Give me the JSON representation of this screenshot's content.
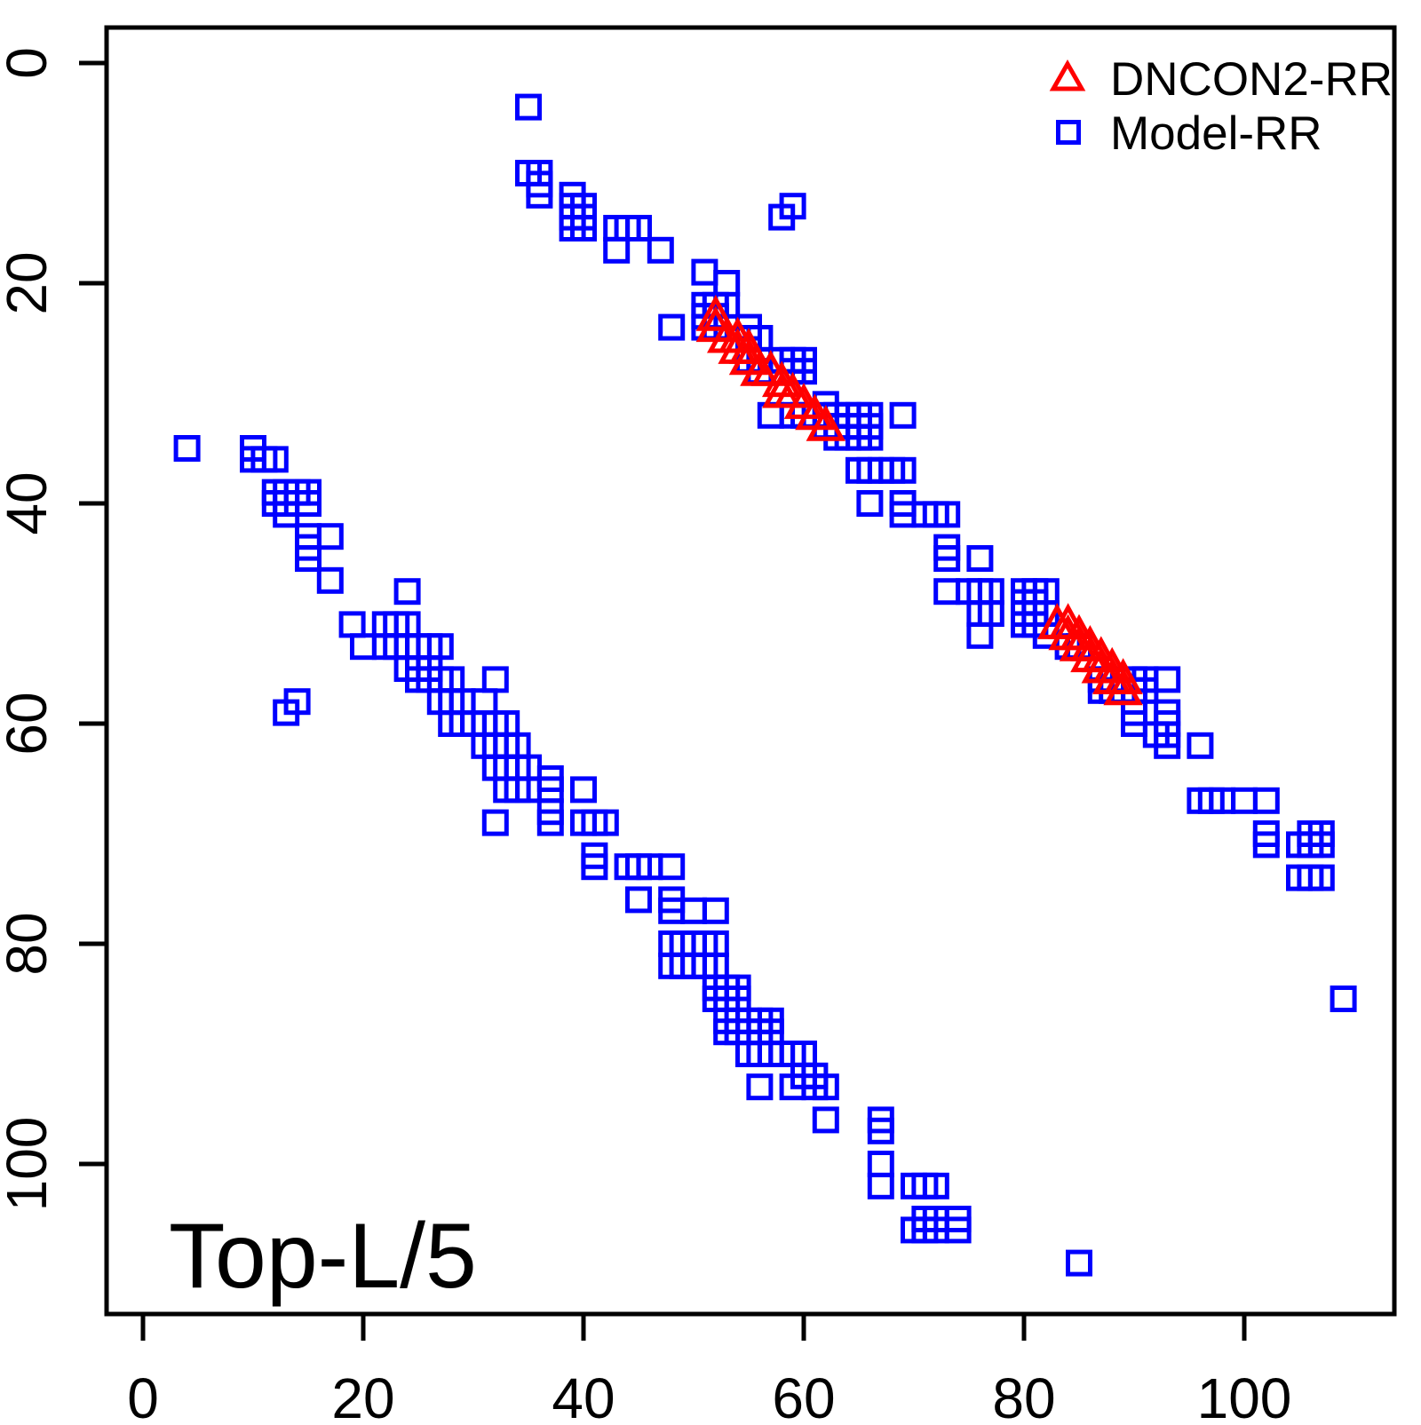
{
  "chart_data": {
    "type": "scatter",
    "title": "",
    "annotation": "Top-L/5",
    "xlabel": "",
    "ylabel": "",
    "xlim": [
      -3.3,
      113.5
    ],
    "ylim": [
      113.6,
      -3.2
    ],
    "y_axis_reversed": true,
    "grid": false,
    "x_ticks": [
      0,
      20,
      40,
      60,
      80,
      100
    ],
    "y_ticks": [
      0,
      20,
      40,
      60,
      80,
      100
    ],
    "legend_position": "top-right-inside",
    "series": [
      {
        "name": "DNCON2-RR",
        "marker": "triangle",
        "color": "#FF0000",
        "points": [
          [
            52,
            23
          ],
          [
            52,
            24
          ],
          [
            53,
            25
          ],
          [
            54,
            25
          ],
          [
            54,
            26
          ],
          [
            55,
            26
          ],
          [
            55,
            27
          ],
          [
            56,
            28
          ],
          [
            57,
            28
          ],
          [
            58,
            29
          ],
          [
            58,
            30
          ],
          [
            59,
            30
          ],
          [
            60,
            31
          ],
          [
            61,
            32
          ],
          [
            62,
            33
          ],
          [
            83,
            51
          ],
          [
            84,
            51
          ],
          [
            84,
            52
          ],
          [
            85,
            52
          ],
          [
            85,
            53
          ],
          [
            86,
            53
          ],
          [
            86,
            54
          ],
          [
            87,
            54
          ],
          [
            87,
            55
          ],
          [
            88,
            55
          ],
          [
            88,
            56
          ],
          [
            89,
            56
          ],
          [
            89,
            57
          ]
        ]
      },
      {
        "name": "Model-RR",
        "marker": "square",
        "color": "#0000FF",
        "points": [
          [
            35,
            4
          ],
          [
            35,
            10
          ],
          [
            36,
            10
          ],
          [
            36,
            11
          ],
          [
            36,
            12
          ],
          [
            39,
            12
          ],
          [
            39,
            13
          ],
          [
            40,
            13
          ],
          [
            39,
            14
          ],
          [
            40,
            14
          ],
          [
            39,
            15
          ],
          [
            40,
            15
          ],
          [
            43,
            15
          ],
          [
            44,
            15
          ],
          [
            45,
            15
          ],
          [
            43,
            17
          ],
          [
            47,
            17
          ],
          [
            59,
            13
          ],
          [
            58,
            14
          ],
          [
            51,
            19
          ],
          [
            53,
            20
          ],
          [
            48,
            24
          ],
          [
            51,
            22
          ],
          [
            52,
            22
          ],
          [
            53,
            22
          ],
          [
            51,
            23
          ],
          [
            52,
            23
          ],
          [
            51,
            24
          ],
          [
            52,
            24
          ],
          [
            55,
            24
          ],
          [
            55,
            25
          ],
          [
            56,
            25
          ],
          [
            55,
            27
          ],
          [
            56,
            27
          ],
          [
            56,
            28
          ],
          [
            58,
            27
          ],
          [
            59,
            27
          ],
          [
            60,
            27
          ],
          [
            59,
            28
          ],
          [
            60,
            28
          ],
          [
            57,
            32
          ],
          [
            62,
            31
          ],
          [
            59,
            32
          ],
          [
            60,
            32
          ],
          [
            62,
            32
          ],
          [
            63,
            32
          ],
          [
            64,
            32
          ],
          [
            65,
            32
          ],
          [
            66,
            32
          ],
          [
            62,
            33
          ],
          [
            63,
            33
          ],
          [
            64,
            33
          ],
          [
            65,
            33
          ],
          [
            66,
            33
          ],
          [
            63,
            34
          ],
          [
            64,
            34
          ],
          [
            65,
            34
          ],
          [
            66,
            34
          ],
          [
            69,
            32
          ],
          [
            65,
            37
          ],
          [
            66,
            37
          ],
          [
            67,
            37
          ],
          [
            68,
            37
          ],
          [
            69,
            37
          ],
          [
            66,
            40
          ],
          [
            69,
            40
          ],
          [
            69,
            41
          ],
          [
            71,
            41
          ],
          [
            72,
            41
          ],
          [
            73,
            41
          ],
          [
            73,
            44
          ],
          [
            73,
            45
          ],
          [
            76,
            45
          ],
          [
            73,
            48
          ],
          [
            75,
            48
          ],
          [
            76,
            48
          ],
          [
            77,
            48
          ],
          [
            76,
            50
          ],
          [
            77,
            50
          ],
          [
            76,
            52
          ],
          [
            80,
            48
          ],
          [
            81,
            48
          ],
          [
            82,
            48
          ],
          [
            80,
            49
          ],
          [
            81,
            49
          ],
          [
            80,
            50
          ],
          [
            81,
            50
          ],
          [
            82,
            50
          ],
          [
            80,
            51
          ],
          [
            81,
            51
          ],
          [
            82,
            52
          ],
          [
            84,
            53
          ],
          [
            85,
            53
          ],
          [
            87,
            56
          ],
          [
            88,
            56
          ],
          [
            87,
            57
          ],
          [
            88,
            57
          ],
          [
            90,
            56
          ],
          [
            91,
            56
          ],
          [
            90,
            57
          ],
          [
            91,
            57
          ],
          [
            93,
            56
          ],
          [
            90,
            59
          ],
          [
            90,
            60
          ],
          [
            93,
            59
          ],
          [
            93,
            60
          ],
          [
            92,
            61
          ],
          [
            93,
            61
          ],
          [
            93,
            62
          ],
          [
            96,
            62
          ],
          [
            96,
            67
          ],
          [
            97,
            67
          ],
          [
            98,
            67
          ],
          [
            100,
            67
          ],
          [
            102,
            67
          ],
          [
            102,
            70
          ],
          [
            102,
            71
          ],
          [
            106,
            70
          ],
          [
            107,
            70
          ],
          [
            105,
            71
          ],
          [
            106,
            71
          ],
          [
            107,
            71
          ],
          [
            105,
            74
          ],
          [
            106,
            74
          ],
          [
            107,
            74
          ],
          [
            109,
            85
          ],
          [
            4,
            35
          ],
          [
            10,
            35
          ],
          [
            10,
            36
          ],
          [
            11,
            36
          ],
          [
            12,
            36
          ],
          [
            12,
            39
          ],
          [
            13,
            39
          ],
          [
            14,
            39
          ],
          [
            12,
            40
          ],
          [
            13,
            40
          ],
          [
            15,
            39
          ],
          [
            15,
            40
          ],
          [
            13,
            41
          ],
          [
            15,
            43
          ],
          [
            15,
            44
          ],
          [
            15,
            45
          ],
          [
            17,
            43
          ],
          [
            17,
            47
          ],
          [
            13,
            59
          ],
          [
            14,
            58
          ],
          [
            19,
            51
          ],
          [
            20,
            53
          ],
          [
            24,
            48
          ],
          [
            22,
            51
          ],
          [
            23,
            51
          ],
          [
            24,
            51
          ],
          [
            22,
            53
          ],
          [
            23,
            53
          ],
          [
            24,
            53
          ],
          [
            25,
            53
          ],
          [
            26,
            53
          ],
          [
            27,
            53
          ],
          [
            24,
            55
          ],
          [
            25,
            55
          ],
          [
            26,
            55
          ],
          [
            25,
            56
          ],
          [
            26,
            56
          ],
          [
            27,
            56
          ],
          [
            28,
            56
          ],
          [
            27,
            58
          ],
          [
            28,
            58
          ],
          [
            29,
            58
          ],
          [
            31,
            58
          ],
          [
            28,
            60
          ],
          [
            29,
            60
          ],
          [
            30,
            60
          ],
          [
            31,
            60
          ],
          [
            32,
            60
          ],
          [
            33,
            60
          ],
          [
            31,
            62
          ],
          [
            32,
            62
          ],
          [
            33,
            62
          ],
          [
            34,
            62
          ],
          [
            32,
            64
          ],
          [
            33,
            64
          ],
          [
            34,
            64
          ],
          [
            35,
            64
          ],
          [
            33,
            66
          ],
          [
            34,
            66
          ],
          [
            35,
            66
          ],
          [
            32,
            56
          ],
          [
            32,
            69
          ],
          [
            37,
            65
          ],
          [
            37,
            66
          ],
          [
            37,
            68
          ],
          [
            37,
            69
          ],
          [
            40,
            66
          ],
          [
            40,
            69
          ],
          [
            41,
            69
          ],
          [
            42,
            69
          ],
          [
            41,
            72
          ],
          [
            41,
            73
          ],
          [
            44,
            73
          ],
          [
            45,
            73
          ],
          [
            46,
            73
          ],
          [
            48,
            73
          ],
          [
            45,
            76
          ],
          [
            48,
            76
          ],
          [
            48,
            77
          ],
          [
            50,
            77
          ],
          [
            52,
            77
          ],
          [
            48,
            80
          ],
          [
            49,
            80
          ],
          [
            50,
            80
          ],
          [
            51,
            80
          ],
          [
            52,
            80
          ],
          [
            48,
            82
          ],
          [
            49,
            82
          ],
          [
            50,
            82
          ],
          [
            51,
            82
          ],
          [
            52,
            82
          ],
          [
            52,
            84
          ],
          [
            53,
            84
          ],
          [
            54,
            84
          ],
          [
            52,
            85
          ],
          [
            53,
            85
          ],
          [
            54,
            85
          ],
          [
            53,
            87
          ],
          [
            54,
            87
          ],
          [
            55,
            87
          ],
          [
            56,
            87
          ],
          [
            57,
            87
          ],
          [
            53,
            88
          ],
          [
            54,
            88
          ],
          [
            55,
            88
          ],
          [
            56,
            88
          ],
          [
            57,
            88
          ],
          [
            55,
            90
          ],
          [
            56,
            90
          ],
          [
            57,
            90
          ],
          [
            58,
            90
          ],
          [
            59,
            90
          ],
          [
            60,
            90
          ],
          [
            60,
            92
          ],
          [
            61,
            92
          ],
          [
            56,
            93
          ],
          [
            59,
            93
          ],
          [
            61,
            93
          ],
          [
            62,
            93
          ],
          [
            62,
            96
          ],
          [
            67,
            96
          ],
          [
            67,
            97
          ],
          [
            67,
            100
          ],
          [
            67,
            102
          ],
          [
            70,
            102
          ],
          [
            71,
            102
          ],
          [
            72,
            102
          ],
          [
            71,
            105
          ],
          [
            72,
            105
          ],
          [
            70,
            106
          ],
          [
            71,
            106
          ],
          [
            72,
            106
          ],
          [
            74,
            105
          ],
          [
            74,
            106
          ],
          [
            85,
            109
          ]
        ]
      }
    ]
  }
}
